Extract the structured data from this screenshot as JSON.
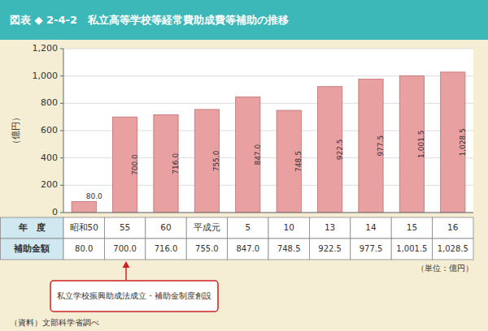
{
  "chart_data": {
    "type": "bar",
    "title": "図表 ◆ 2-4-2　私立高等学校等経常費助成費等補助の推移",
    "categories": [
      "昭和50",
      "55",
      "60",
      "平成元",
      "5",
      "10",
      "13",
      "14",
      "15",
      "16"
    ],
    "values": [
      80.0,
      700.0,
      716.0,
      755.0,
      847.0,
      748.5,
      922.5,
      977.5,
      1001.5,
      1028.5
    ],
    "value_labels": [
      "80.0",
      "700.0",
      "716.0",
      "755.0",
      "847.0",
      "748.5",
      "922.5",
      "977.5",
      "1,001.5",
      "1,028.5"
    ],
    "data_labels": true,
    "color": "#e8a0a0",
    "ylabel": "（億円）",
    "ylim": [
      0,
      1200
    ],
    "yticks": [
      0,
      200,
      400,
      600,
      800,
      {
        "value": 1000,
        "label": "1,000"
      },
      {
        "value": 1200,
        "label": "1,200"
      }
    ],
    "grid": true,
    "tick_labels": "y",
    "row_labels": [
      "年　度",
      "補助金額"
    ],
    "annotations": [
      "私立学校振興助成法成立・補助金制度創設"
    ],
    "unit": "（単位：億円）",
    "source": "（資料）文部科学省調べ"
  }
}
